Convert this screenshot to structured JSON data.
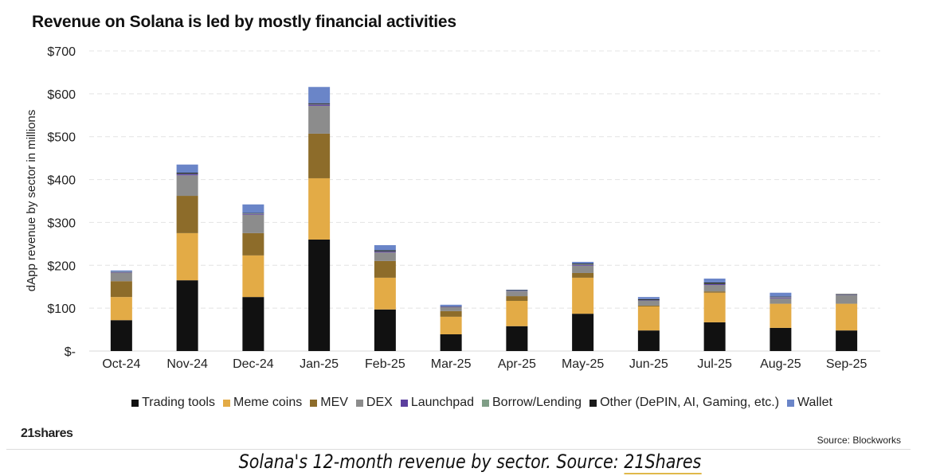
{
  "chart_data": {
    "type": "bar",
    "stacked": true,
    "title": "Revenue on Solana is led by mostly financial activities",
    "xlabel": "",
    "ylabel": "dApp revenue by sector in millions",
    "ylim": [
      0,
      700
    ],
    "yticks": [
      0,
      100,
      200,
      300,
      400,
      500,
      600,
      700
    ],
    "ytick_labels": [
      "$-",
      "$100",
      "$200",
      "$300",
      "$400",
      "$500",
      "$600",
      "$700"
    ],
    "grid": true,
    "legend_position": "bottom",
    "categories": [
      "Oct-24",
      "Nov-24",
      "Dec-24",
      "Jan-25",
      "Feb-25",
      "Mar-25",
      "Apr-25",
      "May-25",
      "Jun-25",
      "Jul-25",
      "Aug-25",
      "Sep-25"
    ],
    "series": [
      {
        "name": "Trading tools",
        "color": "#111111",
        "values": [
          72,
          165,
          126,
          260,
          97,
          39,
          58,
          87,
          48,
          67,
          54,
          48
        ]
      },
      {
        "name": "Meme coins",
        "color": "#e3ab46",
        "values": [
          54,
          110,
          97,
          143,
          74,
          41,
          59,
          84,
          56,
          69,
          56,
          62
        ]
      },
      {
        "name": "MEV",
        "color": "#8d6c2a",
        "values": [
          37,
          87,
          52,
          104,
          39,
          13,
          11,
          11,
          2,
          3,
          1,
          1
        ]
      },
      {
        "name": "DEX",
        "color": "#8c8c8c",
        "values": [
          20,
          48,
          43,
          65,
          20,
          9,
          11,
          17,
          11,
          15,
          12,
          19
        ]
      },
      {
        "name": "Launchpad",
        "color": "#5b3f9e",
        "values": [
          1,
          3,
          2,
          3,
          2,
          1,
          1,
          2,
          1,
          2,
          2,
          1
        ]
      },
      {
        "name": "Borrow/Lending",
        "color": "#7f9e86",
        "values": [
          0.5,
          1,
          1,
          1,
          1,
          0.5,
          1,
          1,
          1,
          1,
          1,
          1
        ]
      },
      {
        "name": "Other (DePIN, AI, Gaming, etc.)",
        "color": "#1a1a1a",
        "values": [
          0.5,
          2,
          1,
          2,
          2,
          0.5,
          1,
          2,
          2,
          3,
          1,
          1
        ]
      },
      {
        "name": "Wallet",
        "color": "#6a85c8",
        "values": [
          3,
          19,
          20,
          38,
          12,
          4,
          1,
          4,
          5,
          9,
          9,
          0
        ]
      }
    ]
  },
  "footer": {
    "logo": "21shares",
    "source": "Source: Blockworks"
  },
  "caption": {
    "text": "Solana's 12-month revenue by sector. Source: ",
    "link": "21Shares"
  }
}
